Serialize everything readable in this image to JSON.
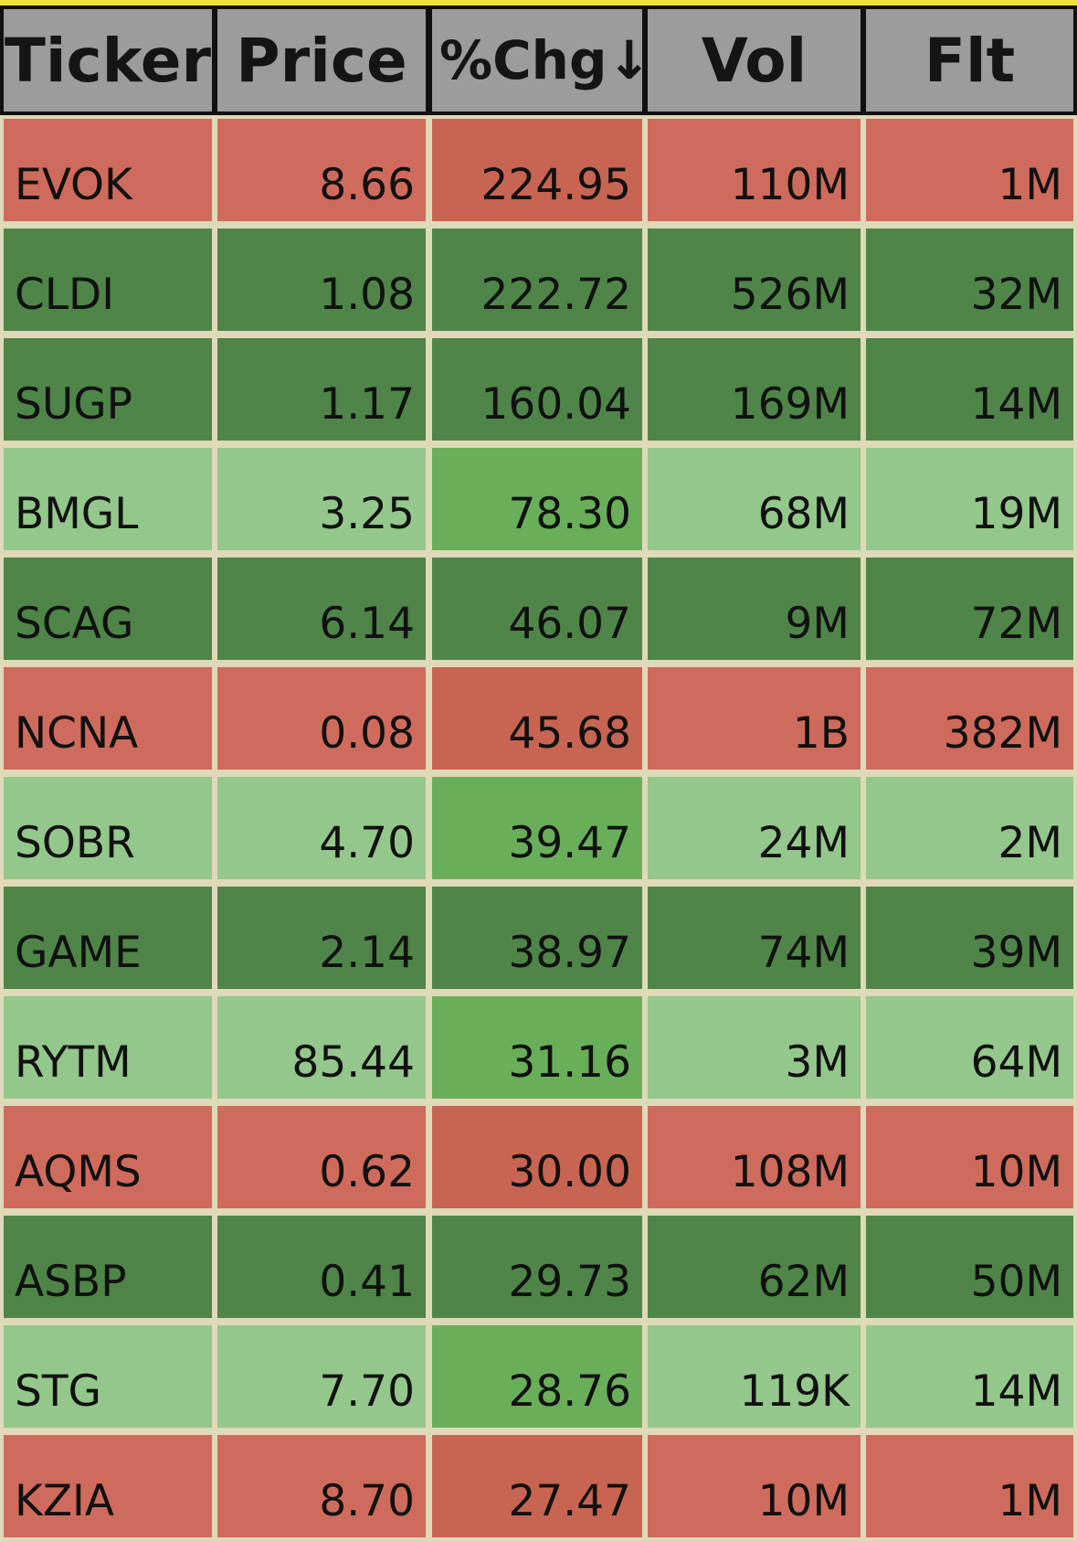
{
  "headers": [
    "Ticker",
    "Price",
    "%Chg↓",
    "Vol",
    "Flt"
  ],
  "colors": {
    "red": "#cf6b5c",
    "red_chg": "#c76452",
    "dark_green": "#4f8548",
    "light_green": "#94c78b",
    "light_green_chg": "#69ae59"
  },
  "rows": [
    {
      "ticker": "EVOK",
      "price": "8.66",
      "chg": "224.95",
      "vol": "110M",
      "flt": "1M",
      "tone": "red"
    },
    {
      "ticker": "CLDI",
      "price": "1.08",
      "chg": "222.72",
      "vol": "526M",
      "flt": "32M",
      "tone": "dark_green"
    },
    {
      "ticker": "SUGP",
      "price": "1.17",
      "chg": "160.04",
      "vol": "169M",
      "flt": "14M",
      "tone": "dark_green"
    },
    {
      "ticker": "BMGL",
      "price": "3.25",
      "chg": "78.30",
      "vol": "68M",
      "flt": "19M",
      "tone": "light_green"
    },
    {
      "ticker": "SCAG",
      "price": "6.14",
      "chg": "46.07",
      "vol": "9M",
      "flt": "72M",
      "tone": "dark_green"
    },
    {
      "ticker": "NCNA",
      "price": "0.08",
      "chg": "45.68",
      "vol": "1B",
      "flt": "382M",
      "tone": "red"
    },
    {
      "ticker": "SOBR",
      "price": "4.70",
      "chg": "39.47",
      "vol": "24M",
      "flt": "2M",
      "tone": "light_green"
    },
    {
      "ticker": "GAME",
      "price": "2.14",
      "chg": "38.97",
      "vol": "74M",
      "flt": "39M",
      "tone": "dark_green"
    },
    {
      "ticker": "RYTM",
      "price": "85.44",
      "chg": "31.16",
      "vol": "3M",
      "flt": "64M",
      "tone": "light_green"
    },
    {
      "ticker": "AQMS",
      "price": "0.62",
      "chg": "30.00",
      "vol": "108M",
      "flt": "10M",
      "tone": "red"
    },
    {
      "ticker": "ASBP",
      "price": "0.41",
      "chg": "29.73",
      "vol": "62M",
      "flt": "50M",
      "tone": "dark_green"
    },
    {
      "ticker": "STG",
      "price": "7.70",
      "chg": "28.76",
      "vol": "119K",
      "flt": "14M",
      "tone": "light_green"
    },
    {
      "ticker": "KZIA",
      "price": "8.70",
      "chg": "27.47",
      "vol": "10M",
      "flt": "1M",
      "tone": "red"
    }
  ]
}
